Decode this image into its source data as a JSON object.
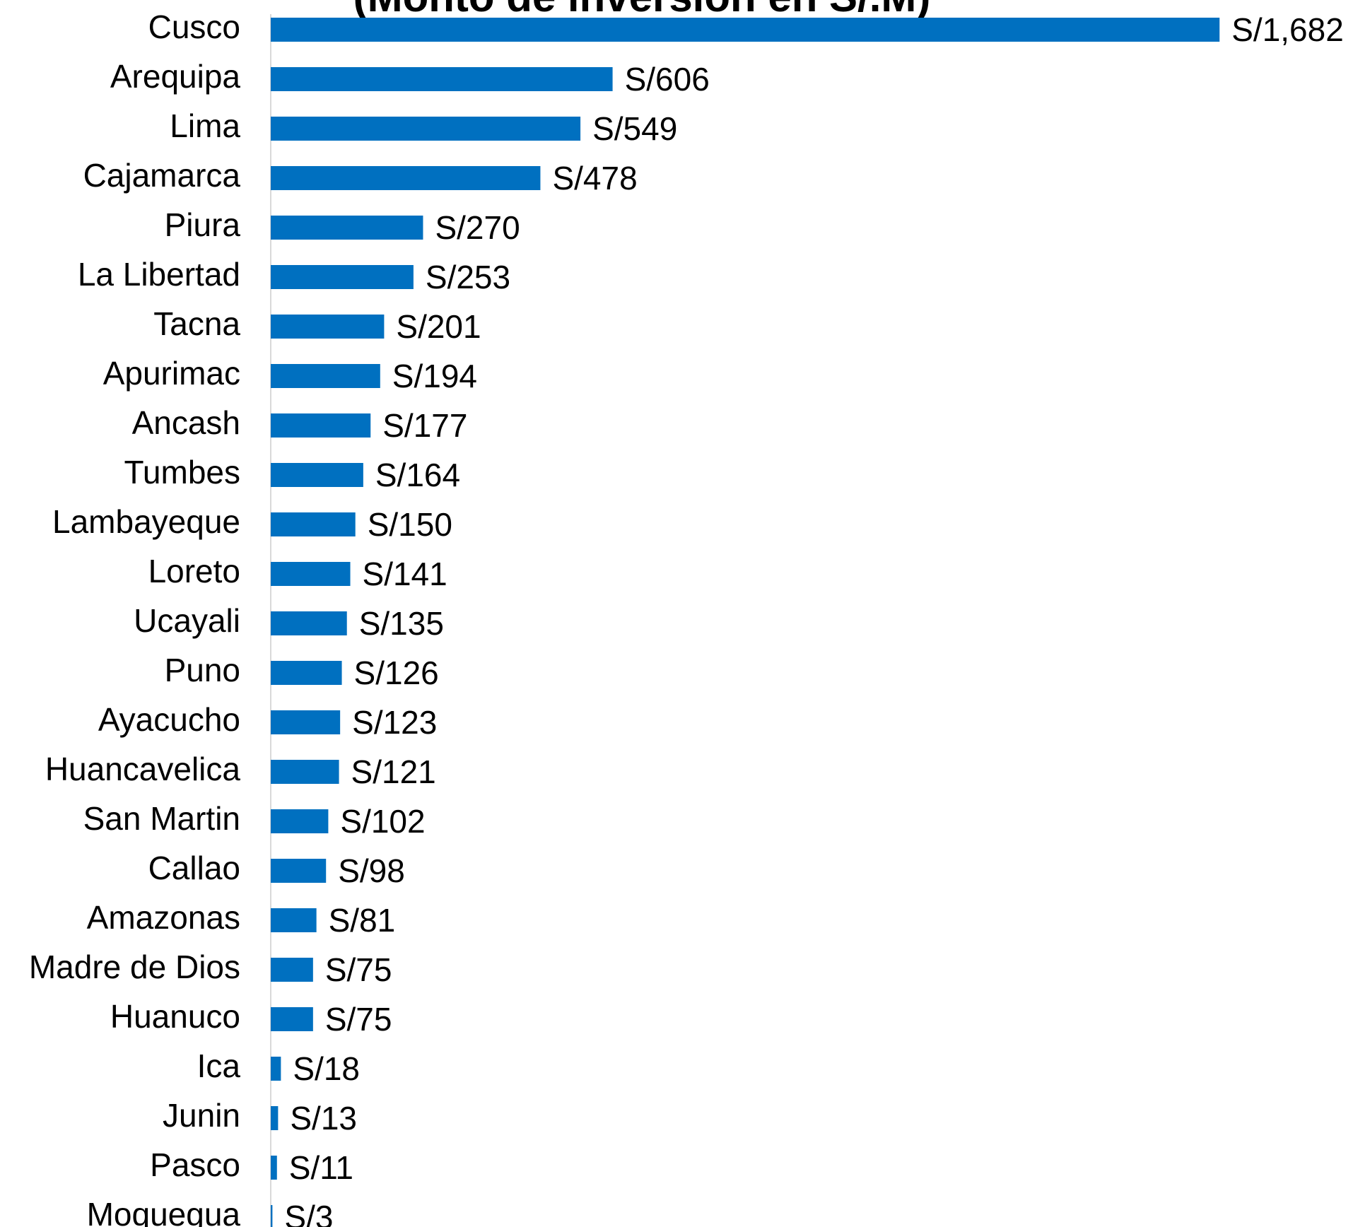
{
  "chart_data": {
    "type": "bar",
    "orientation": "horizontal",
    "title": "(Monto de inversión en S/.M)",
    "categories": [
      "Cusco",
      "Arequipa",
      "Lima",
      "Cajamarca",
      "Piura",
      "La Libertad",
      "Tacna",
      "Apurimac",
      "Ancash",
      "Tumbes",
      "Lambayeque",
      "Loreto",
      "Ucayali",
      "Puno",
      "Ayacucho",
      "Huancavelica",
      "San Martin",
      "Callao",
      "Amazonas",
      "Madre de Dios",
      "Huanuco",
      "Ica",
      "Junin",
      "Pasco",
      "Moquegua"
    ],
    "values": [
      1682,
      606,
      549,
      478,
      270,
      253,
      201,
      194,
      177,
      164,
      150,
      141,
      135,
      126,
      123,
      121,
      102,
      98,
      81,
      75,
      75,
      18,
      13,
      11,
      3
    ],
    "value_labels": [
      "S/1,682",
      "S/606",
      "S/549",
      "S/478",
      "S/270",
      "S/253",
      "S/201",
      "S/194",
      "S/177",
      "S/164",
      "S/150",
      "S/141",
      "S/135",
      "S/126",
      "S/123",
      "S/121",
      "S/102",
      "S/98",
      "S/81",
      "S/75",
      "S/75",
      "S/18",
      "S/13",
      "S/11",
      "S/3"
    ],
    "color": "#0070c0"
  }
}
